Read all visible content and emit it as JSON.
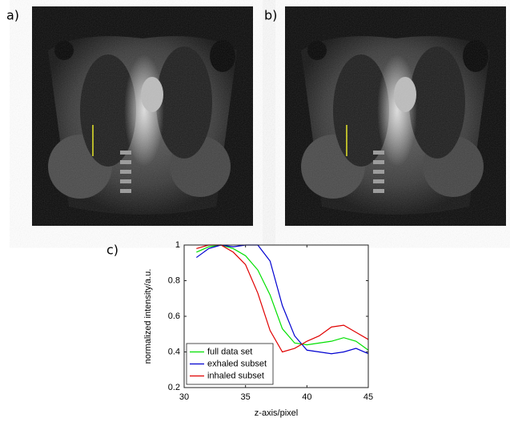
{
  "panels": [
    {
      "label": "a)"
    },
    {
      "label": "b)"
    }
  ],
  "chart_data": {
    "type": "line",
    "panel_label": "c)",
    "x_label": "z-axis/pixel",
    "y_label": "normalized intensity/a.u.",
    "x": [
      31,
      32,
      33,
      34,
      35,
      36,
      37,
      38,
      39,
      40,
      41,
      42,
      43,
      44,
      45
    ],
    "series": [
      {
        "name": "full data set",
        "color": "#00e000",
        "values": [
          0.96,
          0.99,
          1.0,
          0.98,
          0.94,
          0.86,
          0.72,
          0.53,
          0.45,
          0.44,
          0.45,
          0.46,
          0.48,
          0.46,
          0.41
        ]
      },
      {
        "name": "exhaled subset",
        "color": "#0000d0",
        "values": [
          0.93,
          0.98,
          1.0,
          0.99,
          1.0,
          1.0,
          0.91,
          0.66,
          0.49,
          0.41,
          0.4,
          0.39,
          0.4,
          0.42,
          0.39
        ]
      },
      {
        "name": "inhaled subset",
        "color": "#e00000",
        "values": [
          0.98,
          1.0,
          1.0,
          0.96,
          0.89,
          0.73,
          0.52,
          0.4,
          0.42,
          0.46,
          0.49,
          0.54,
          0.55,
          0.51,
          0.47
        ]
      }
    ],
    "xlim": [
      30,
      45
    ],
    "xticks": [
      30,
      35,
      40,
      45
    ],
    "ylim": [
      0.2,
      1
    ],
    "yticks": [
      0.2,
      0.4,
      0.6,
      0.8,
      1
    ],
    "legend": "lower left",
    "grid": false
  }
}
